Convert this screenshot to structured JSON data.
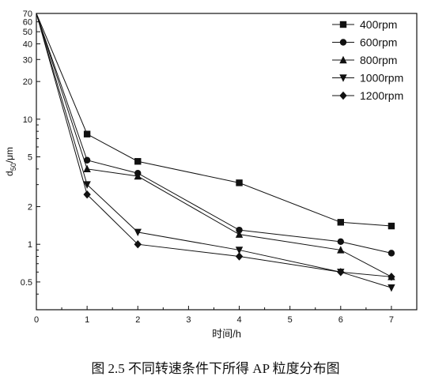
{
  "caption": "图 2.5 不同转速条件下所得 AP 粒度分布图",
  "chart_data": {
    "type": "line",
    "xlabel": "时间/h",
    "ylabel": "d50/μm",
    "yscale": "log",
    "xlim": [
      0,
      7.5
    ],
    "ylim": [
      0.3,
      70
    ],
    "xticks": [
      0,
      1,
      2,
      3,
      4,
      5,
      6,
      7
    ],
    "yticks": [
      0.5,
      1,
      2,
      5,
      10,
      20,
      30,
      40,
      50,
      60,
      70
    ],
    "legend_position": "top-right",
    "series": [
      {
        "name": "400rpm",
        "marker": "square",
        "x": [
          0,
          1,
          2,
          4,
          6,
          7
        ],
        "values": [
          70,
          7.6,
          4.6,
          3.1,
          1.5,
          1.4
        ]
      },
      {
        "name": "600rpm",
        "marker": "circle",
        "x": [
          0,
          1,
          2,
          4,
          6,
          7
        ],
        "values": [
          70,
          4.7,
          3.7,
          1.3,
          1.05,
          0.85
        ]
      },
      {
        "name": "800rpm",
        "marker": "triangle-up",
        "x": [
          0,
          1,
          2,
          4,
          6,
          7
        ],
        "values": [
          70,
          4.0,
          3.5,
          1.2,
          0.9,
          0.55
        ]
      },
      {
        "name": "1000rpm",
        "marker": "triangle-down",
        "x": [
          0,
          1,
          2,
          4,
          6,
          7
        ],
        "values": [
          70,
          3.0,
          1.25,
          0.9,
          0.6,
          0.45
        ]
      },
      {
        "name": "1200rpm",
        "marker": "diamond",
        "x": [
          0,
          1,
          2,
          4,
          6,
          7
        ],
        "values": [
          70,
          2.5,
          1.0,
          0.8,
          0.6,
          0.55
        ]
      }
    ]
  }
}
